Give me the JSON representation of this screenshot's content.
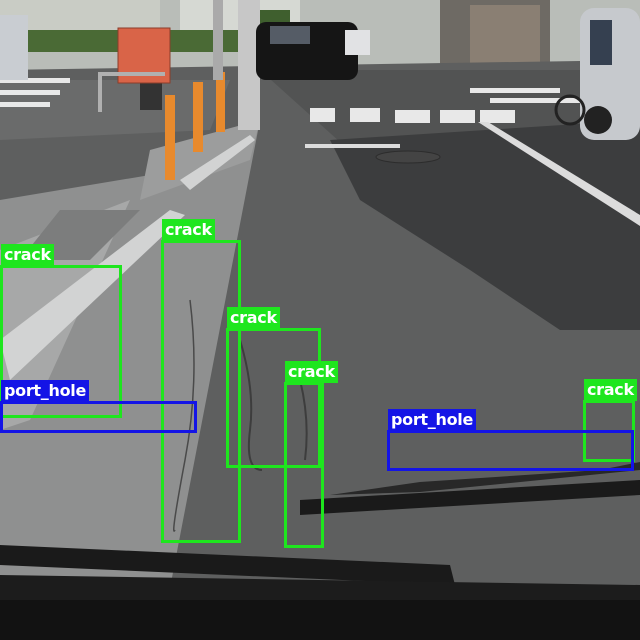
{
  "image": {
    "description_colors": {
      "crack_box": "#1ee61e",
      "port_hole_box": "#1414e6",
      "label_text": "#ffffff"
    }
  },
  "detections": [
    {
      "label": "crack",
      "color_key": "crack"
    },
    {
      "label": "crack",
      "color_key": "crack"
    },
    {
      "label": "crack",
      "color_key": "crack"
    },
    {
      "label": "crack",
      "color_key": "crack"
    },
    {
      "label": "crack",
      "color_key": "crack"
    },
    {
      "label": "port_hole",
      "color_key": "port_hole"
    },
    {
      "label": "port_hole",
      "color_key": "port_hole"
    }
  ]
}
